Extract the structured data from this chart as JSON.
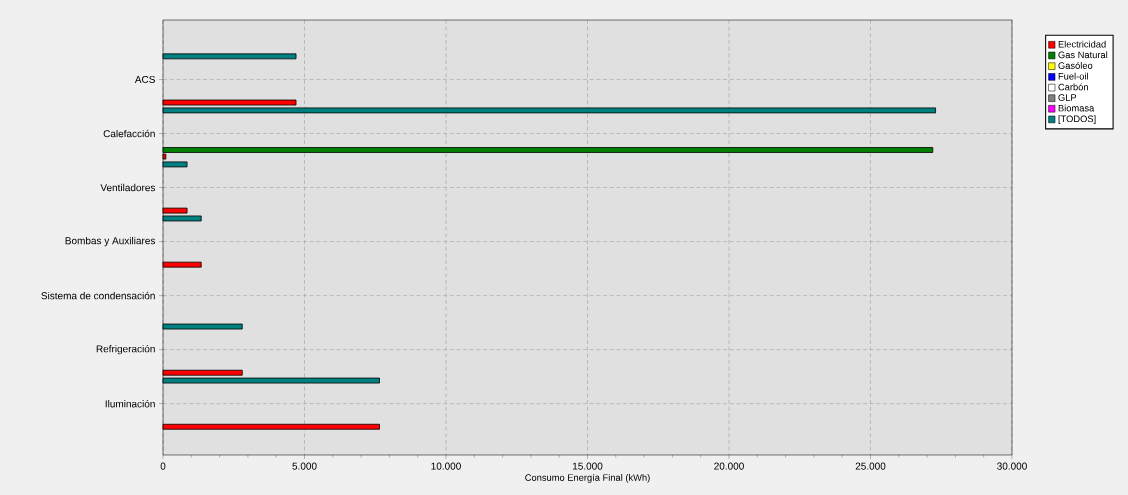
{
  "chart_data": {
    "type": "bar",
    "orientation": "horizontal",
    "xlabel": "Consumo Energía Final (kWh)",
    "categories": [
      "ACS",
      "Calefacción",
      "Ventiladores",
      "Bombas y Auxiliares",
      "Sistema de condensación",
      "Refrigeración",
      "Iluminación"
    ],
    "series": [
      {
        "name": "Electricidad",
        "color": "#ff0000",
        "values": [
          4700,
          100,
          850,
          1350,
          0,
          2800,
          7650
        ]
      },
      {
        "name": "Gas Natural",
        "color": "#008000",
        "values": [
          0,
          27200,
          0,
          0,
          0,
          0,
          0
        ]
      },
      {
        "name": "Gasóleo",
        "color": "#ffff00",
        "values": [
          0,
          0,
          0,
          0,
          0,
          0,
          0
        ]
      },
      {
        "name": "Fuel-oil",
        "color": "#0000ff",
        "values": [
          0,
          0,
          0,
          0,
          0,
          0,
          0
        ]
      },
      {
        "name": "Carbón",
        "color": "#ffffff",
        "values": [
          0,
          0,
          0,
          0,
          0,
          0,
          0
        ]
      },
      {
        "name": "GLP",
        "color": "#808080",
        "values": [
          0,
          0,
          0,
          0,
          0,
          0,
          0
        ]
      },
      {
        "name": "Biomasa",
        "color": "#ff00ff",
        "values": [
          0,
          0,
          0,
          0,
          0,
          0,
          0
        ]
      },
      {
        "name": "[TODOS]",
        "color": "#008080",
        "values": [
          4700,
          27300,
          850,
          1350,
          0,
          2800,
          7650
        ]
      }
    ],
    "xlim": [
      0,
      30000
    ],
    "xticks": [
      0,
      {
        "value": 5000,
        "label": "5.000"
      },
      {
        "value": 10000,
        "label": "10.000"
      },
      {
        "value": 15000,
        "label": "15.000"
      },
      {
        "value": 20000,
        "label": "20.000"
      },
      {
        "value": 25000,
        "label": "25.000"
      },
      {
        "value": 30000,
        "label": "30.000"
      }
    ],
    "grid": true,
    "legend": "top right"
  }
}
